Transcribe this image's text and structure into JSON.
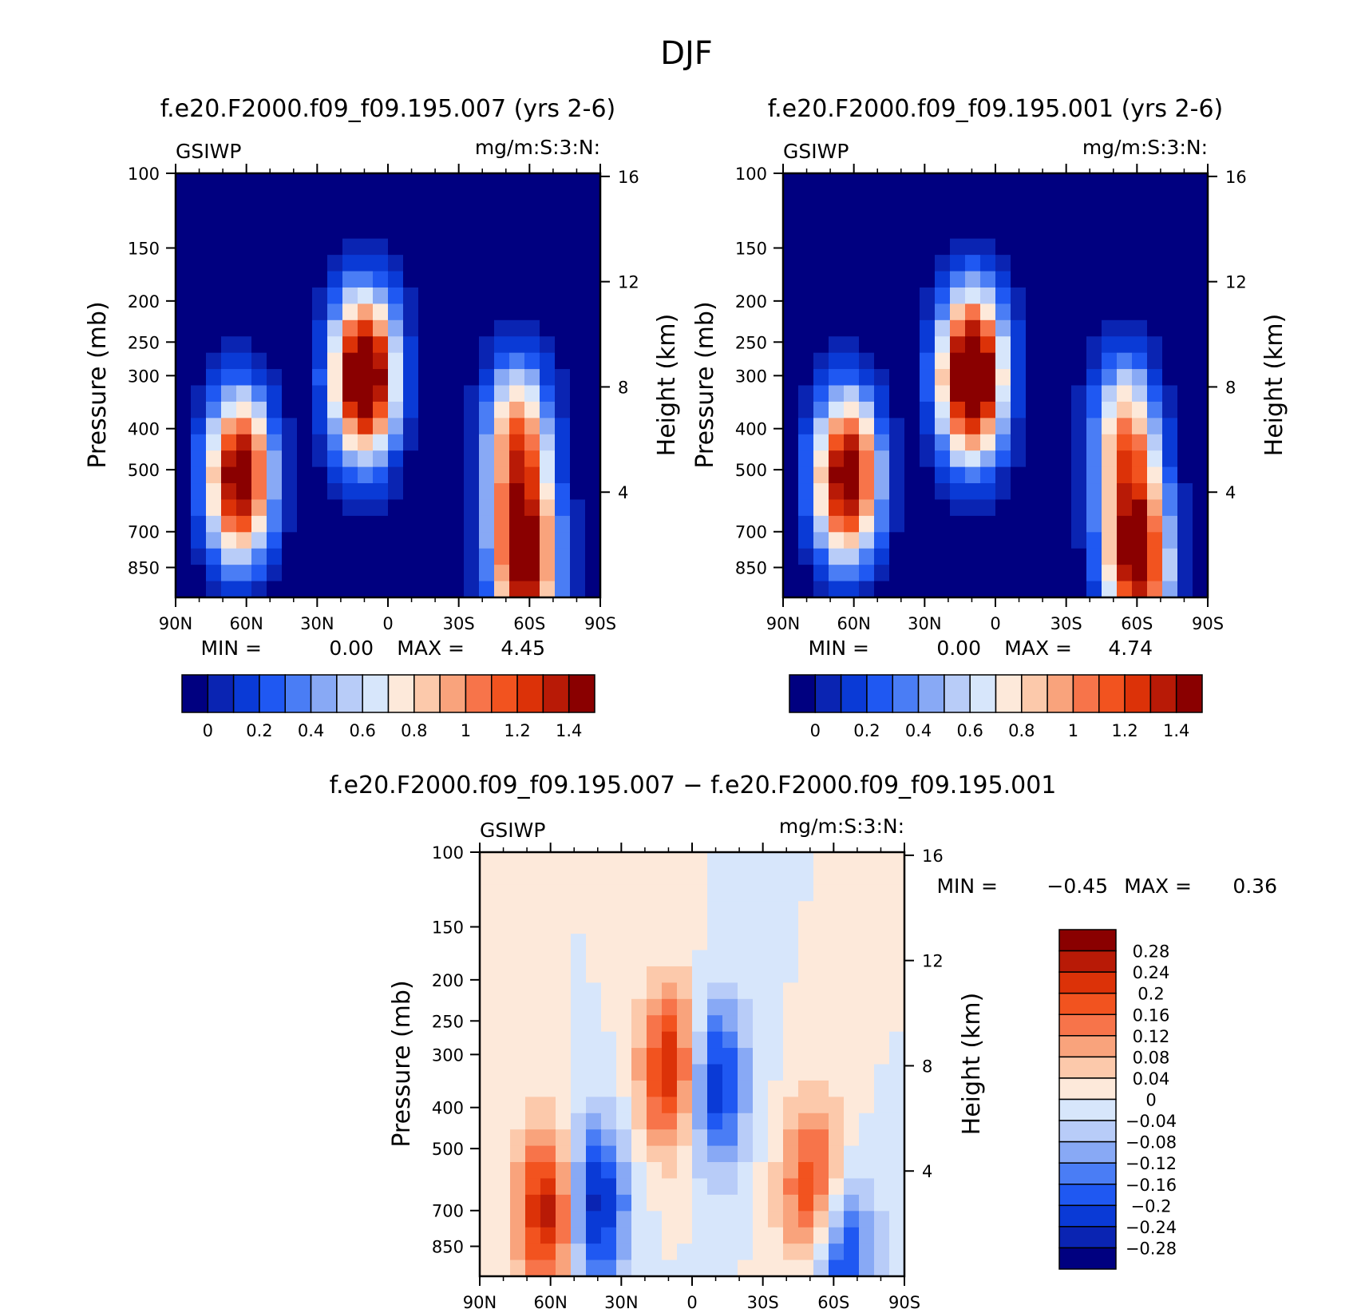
{
  "figure_title": "DJF",
  "colors": {
    "absolute_scale": [
      "#000080",
      "#0a24b2",
      "#0a3ad6",
      "#1f58f2",
      "#4a7df5",
      "#88a9f5",
      "#b8ccf8",
      "#d7e6fb",
      "#fde9da",
      "#fcc9ab",
      "#f9a37c",
      "#f7744a",
      "#f2531f",
      "#dc3208",
      "#b81a06",
      "#8a0000"
    ],
    "difference_scale": [
      "#8a0000",
      "#b81a06",
      "#dc3208",
      "#f2531f",
      "#f7744a",
      "#f9a37c",
      "#fcc9ab",
      "#fde9da",
      "#d7e6fb",
      "#b8ccf8",
      "#88a9f5",
      "#4a7df5",
      "#1f58f2",
      "#0a3ad6",
      "#0a24b2",
      "#000080"
    ]
  },
  "chart_data": [
    {
      "type": "heatmap",
      "title": "f.e20.F2000.f09_f09.195.007 (yrs 2-6)",
      "variable": "GSIWP",
      "units": "mg/m:S:3:N:",
      "xlabel": "",
      "ylabel": "Pressure (mb)",
      "y2label": "Height (km)",
      "x_ticks": [
        "90N",
        "60N",
        "30N",
        "0",
        "30S",
        "60S",
        "90S"
      ],
      "y_ticks": [
        100,
        150,
        200,
        250,
        300,
        400,
        500,
        700,
        850
      ],
      "y2_ticks": [
        4,
        8,
        12,
        16
      ],
      "min_label": "MIN =",
      "min": "0.00",
      "max_label": "MAX =",
      "max": "4.45",
      "colorbar_labels": [
        "0",
        "0.2",
        "0.4",
        "0.6",
        "0.8",
        "1",
        "1.2",
        "1.4"
      ],
      "features": [
        {
          "lat": 63,
          "p": 520,
          "amp": 1.7
        },
        {
          "lat": 10,
          "p": 300,
          "amp": 1.9
        },
        {
          "lat": -55,
          "p": 430,
          "amp": 1.15
        },
        {
          "lat": -58,
          "p": 830,
          "amp": 1.6
        }
      ]
    },
    {
      "type": "heatmap",
      "title": "f.e20.F2000.f09_f09.195.001 (yrs 2-6)",
      "variable": "GSIWP",
      "units": "mg/m:S:3:N:",
      "xlabel": "",
      "ylabel": "Pressure (mb)",
      "y2label": "Height (km)",
      "x_ticks": [
        "90N",
        "60N",
        "30N",
        "0",
        "30S",
        "60S",
        "90S"
      ],
      "y_ticks": [
        100,
        150,
        200,
        250,
        300,
        400,
        500,
        700,
        850
      ],
      "y2_ticks": [
        4,
        8,
        12,
        16
      ],
      "min_label": "MIN =",
      "min": "0.00",
      "max_label": "MAX =",
      "max": "4.74",
      "colorbar_labels": [
        "0",
        "0.2",
        "0.4",
        "0.6",
        "0.8",
        "1",
        "1.2",
        "1.4"
      ],
      "features": [
        {
          "lat": 63,
          "p": 520,
          "amp": 1.7
        },
        {
          "lat": 10,
          "p": 300,
          "amp": 2.0
        },
        {
          "lat": -55,
          "p": 430,
          "amp": 1.1
        },
        {
          "lat": -60,
          "p": 830,
          "amp": 1.6
        }
      ]
    },
    {
      "type": "heatmap",
      "title": "f.e20.F2000.f09_f09.195.007 − f.e20.F2000.f09_f09.195.001",
      "variable": "GSIWP",
      "units": "mg/m:S:3:N:",
      "xlabel": "",
      "ylabel": "Pressure (mb)",
      "y2label": "Height (km)",
      "x_ticks": [
        "90N",
        "60N",
        "30N",
        "0",
        "30S",
        "60S",
        "90S"
      ],
      "y_ticks": [
        100,
        150,
        200,
        250,
        300,
        400,
        500,
        700,
        850
      ],
      "y2_ticks": [
        4,
        8,
        12,
        16
      ],
      "min_label": "MIN =",
      "min": "−0.45",
      "max_label": "MAX =",
      "max": "0.36",
      "colorbar_labels": [
        "0.28",
        "0.24",
        "0.2",
        "0.16",
        "0.12",
        "0.08",
        "0.04",
        "0",
        "−0.04",
        "−0.08",
        "−0.12",
        "−0.16",
        "−0.2",
        "−0.24",
        "−0.28"
      ],
      "features": [
        {
          "lat": 60,
          "p": 700,
          "amp": 0.3
        },
        {
          "lat": 42,
          "p": 680,
          "amp": -0.3
        },
        {
          "lat": 7,
          "p": 330,
          "amp": 0.3
        },
        {
          "lat": -8,
          "p": 350,
          "amp": -0.3
        },
        {
          "lat": -53,
          "p": 650,
          "amp": 0.28
        },
        {
          "lat": -62,
          "p": 840,
          "amp": -0.28
        }
      ]
    }
  ]
}
